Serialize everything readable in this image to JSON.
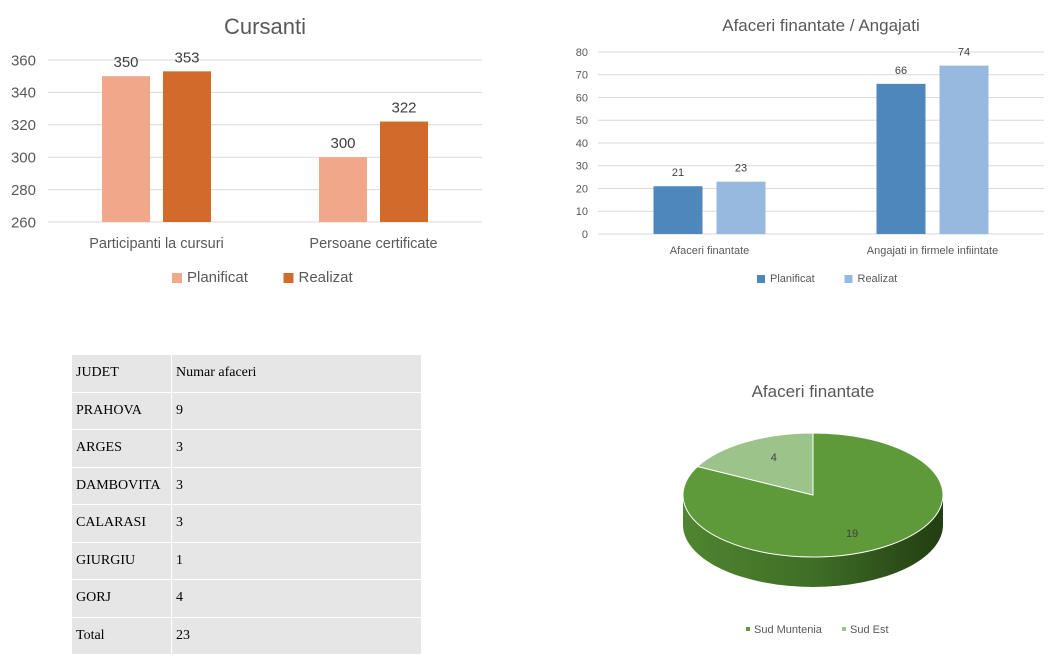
{
  "chart_data": [
    {
      "type": "bar",
      "title": "Cursanti",
      "categories": [
        "Participanti la cursuri",
        "Persoane certificate"
      ],
      "series": [
        {
          "name": "Planificat",
          "values": [
            350,
            300
          ],
          "color": "#f1a78a"
        },
        {
          "name": "Realizat",
          "values": [
            353,
            322
          ],
          "color": "#d26b2a"
        }
      ],
      "ylim": [
        260,
        360
      ],
      "yticks": [
        260,
        280,
        300,
        320,
        340,
        360
      ],
      "grid": true,
      "legend": "bottom"
    },
    {
      "type": "bar",
      "title": "Afaceri finantate / Angajati",
      "categories": [
        "Afaceri finantate",
        "Angajati in firmele infiintate"
      ],
      "series": [
        {
          "name": "Planificat",
          "values": [
            21,
            66
          ],
          "color": "#4e87bb"
        },
        {
          "name": "Realizat",
          "values": [
            23,
            74
          ],
          "color": "#97b9e0"
        }
      ],
      "ylim": [
        0,
        80
      ],
      "yticks": [
        0,
        10,
        20,
        30,
        40,
        50,
        60,
        70,
        80
      ],
      "grid": true,
      "legend": "bottom"
    },
    {
      "type": "pie",
      "title": "Afaceri finantate",
      "slices": [
        {
          "name": "Sud Muntenia",
          "value": 19,
          "color": "#5e9a3a"
        },
        {
          "name": "Sud Est",
          "value": 4,
          "color": "#9cc38a"
        }
      ],
      "legend": "bottom",
      "three_d": true
    }
  ],
  "table": {
    "headers": [
      "JUDET",
      "Numar afaceri"
    ],
    "rows": [
      [
        "PRAHOVA",
        "9"
      ],
      [
        "ARGES",
        "3"
      ],
      [
        "DAMBOVITA",
        "3"
      ],
      [
        "CALARASI",
        "3"
      ],
      [
        "GIURGIU",
        "1"
      ],
      [
        "GORJ",
        "4"
      ],
      [
        "Total",
        "23"
      ]
    ]
  }
}
